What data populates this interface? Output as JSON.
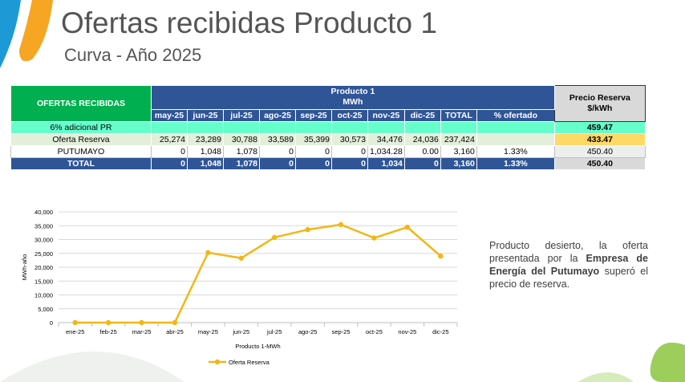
{
  "header": {
    "title": "Ofertas recibidas Producto 1",
    "subtitle": "Curva - Año 2025"
  },
  "table": {
    "corner_label": "OFERTAS RECIBIDAS",
    "product_label": "Producto 1",
    "unit_label": "MWh",
    "price_header_line1": "Precio Reserva",
    "price_header_line2": "$/kWh",
    "columns": [
      "may-25",
      "jun-25",
      "jul-25",
      "ago-25",
      "sep-25",
      "oct-25",
      "nov-25",
      "dic-25",
      "TOTAL",
      "% ofertado"
    ],
    "rows": [
      {
        "label": "6% adicional PR",
        "cells": [
          "",
          "",
          "",
          "",
          "",
          "",
          "",
          "",
          "",
          ""
        ],
        "price": "459.47"
      },
      {
        "label": "Oferta Reserva",
        "cells": [
          "25,274",
          "23,289",
          "30,788",
          "33,589",
          "35,399",
          "30,573",
          "34,476",
          "24,036",
          "237,424",
          ""
        ],
        "price": "433.47"
      },
      {
        "label": "PUTUMAYO",
        "cells": [
          "0",
          "1,048",
          "1,078",
          "0",
          "0",
          "0",
          "1,034.28",
          "0.00",
          "3,160",
          "1.33%"
        ],
        "price": "450.40"
      },
      {
        "label": "TOTAL",
        "cells": [
          "0",
          "1,048",
          "1,078",
          "0",
          "0",
          "0",
          "1,034",
          "0",
          "3,160",
          "1.33%"
        ],
        "price": "450.40"
      }
    ]
  },
  "note": {
    "part1": "Producto desierto, la oferta presentada por la ",
    "bold": "Empresa de Energía del Putumayo",
    "part2": " superó el precio de reserva."
  },
  "colors": {
    "line": "#f2b714",
    "grid": "#d9d9d9",
    "header_blue": "#2f5597",
    "header_green": "#00b050"
  },
  "chart_data": {
    "type": "line",
    "categories": [
      "ene-25",
      "feb-25",
      "mar-25",
      "abr-25",
      "may-25",
      "jun-25",
      "jul-25",
      "ago-25",
      "sep-25",
      "oct-25",
      "nov-25",
      "dic-25"
    ],
    "series": [
      {
        "name": "Oferta Reserva",
        "values": [
          0,
          0,
          0,
          0,
          25274,
          23289,
          30788,
          33589,
          35399,
          30573,
          34476,
          24036
        ]
      }
    ],
    "yticks": [
      "0",
      "5,000",
      "10,000",
      "15,000",
      "20,000",
      "25,000",
      "30,000",
      "35,000",
      "40,000"
    ],
    "ylim": [
      0,
      40000
    ],
    "ylabel": "MWh-año",
    "xlabel": "Producto 1-MWh",
    "grid": true,
    "legend_position": "bottom"
  }
}
